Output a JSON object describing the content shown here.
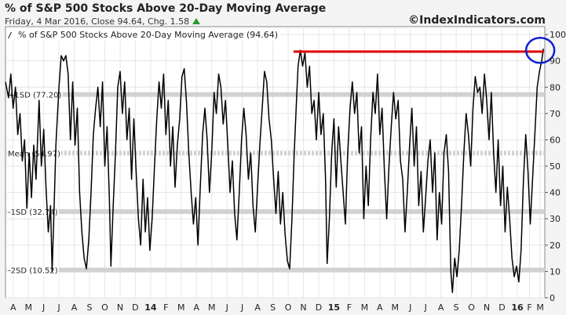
{
  "header": {
    "title": "% of S&P 500 Stocks Above 20-Day Moving Average",
    "subtitle": "Friday, 4 Mar 2016, Close 94.64, Chg. 1.58",
    "credit": "©IndexIndicators.com"
  },
  "legend": {
    "label": "% of S&P 500 Stocks Above 20-Day Moving Average (94.64)"
  },
  "chart_data": {
    "type": "line",
    "title": "% of S&P 500 Stocks Above 20-Day Moving Average",
    "ylim": [
      0,
      103
    ],
    "yticks": [
      0,
      10,
      20,
      30,
      40,
      50,
      60,
      70,
      80,
      90,
      100
    ],
    "xlim": [
      0,
      35.3
    ],
    "xticks": [
      {
        "label": "A",
        "pos": 0.5,
        "bold": false
      },
      {
        "label": "M",
        "pos": 1.5,
        "bold": false
      },
      {
        "label": "J",
        "pos": 2.5,
        "bold": false
      },
      {
        "label": "J",
        "pos": 3.5,
        "bold": false
      },
      {
        "label": "A",
        "pos": 4.5,
        "bold": false
      },
      {
        "label": "S",
        "pos": 5.5,
        "bold": false
      },
      {
        "label": "O",
        "pos": 6.5,
        "bold": false
      },
      {
        "label": "N",
        "pos": 7.5,
        "bold": false
      },
      {
        "label": "D",
        "pos": 8.5,
        "bold": false
      },
      {
        "label": "14",
        "pos": 9.5,
        "bold": true
      },
      {
        "label": "F",
        "pos": 10.5,
        "bold": false
      },
      {
        "label": "M",
        "pos": 11.5,
        "bold": false
      },
      {
        "label": "A",
        "pos": 12.5,
        "bold": false
      },
      {
        "label": "M",
        "pos": 13.5,
        "bold": false
      },
      {
        "label": "J",
        "pos": 14.5,
        "bold": false
      },
      {
        "label": "J",
        "pos": 15.5,
        "bold": false
      },
      {
        "label": "A",
        "pos": 16.5,
        "bold": false
      },
      {
        "label": "S",
        "pos": 17.5,
        "bold": false
      },
      {
        "label": "O",
        "pos": 18.5,
        "bold": false
      },
      {
        "label": "N",
        "pos": 19.5,
        "bold": false
      },
      {
        "label": "D",
        "pos": 20.5,
        "bold": false
      },
      {
        "label": "15",
        "pos": 21.5,
        "bold": true
      },
      {
        "label": "F",
        "pos": 22.5,
        "bold": false
      },
      {
        "label": "M",
        "pos": 23.5,
        "bold": false
      },
      {
        "label": "A",
        "pos": 24.5,
        "bold": false
      },
      {
        "label": "M",
        "pos": 25.5,
        "bold": false
      },
      {
        "label": "J",
        "pos": 26.5,
        "bold": false
      },
      {
        "label": "J",
        "pos": 27.5,
        "bold": false
      },
      {
        "label": "A",
        "pos": 28.5,
        "bold": false
      },
      {
        "label": "S",
        "pos": 29.5,
        "bold": false
      },
      {
        "label": "O",
        "pos": 30.5,
        "bold": false
      },
      {
        "label": "N",
        "pos": 31.5,
        "bold": false
      },
      {
        "label": "D",
        "pos": 32.5,
        "bold": false
      },
      {
        "label": "16",
        "pos": 33.5,
        "bold": true
      },
      {
        "label": "F",
        "pos": 34.3,
        "bold": false
      },
      {
        "label": "M",
        "pos": 35.0,
        "bold": false
      }
    ],
    "bands": [
      {
        "label": "+1SD (77.20)",
        "value": 77.2
      },
      {
        "label": "Mean (54.97)",
        "value": 54.97,
        "dashed": true
      },
      {
        "label": "-1SD (32.74)",
        "value": 32.74
      },
      {
        "label": "-2SD (10.52)",
        "value": 10.52
      }
    ],
    "series": [
      {
        "values": [
          [
            0.0,
            82
          ],
          [
            0.2,
            76
          ],
          [
            0.35,
            85
          ],
          [
            0.5,
            72
          ],
          [
            0.65,
            80
          ],
          [
            0.8,
            62
          ],
          [
            0.95,
            70
          ],
          [
            1.1,
            52
          ],
          [
            1.25,
            60
          ],
          [
            1.4,
            34
          ],
          [
            1.55,
            55
          ],
          [
            1.7,
            38
          ],
          [
            1.85,
            58
          ],
          [
            2.0,
            45
          ],
          [
            2.2,
            75
          ],
          [
            2.35,
            50
          ],
          [
            2.5,
            64
          ],
          [
            2.65,
            42
          ],
          [
            2.8,
            25
          ],
          [
            2.95,
            35
          ],
          [
            3.05,
            10
          ],
          [
            3.15,
            28
          ],
          [
            3.3,
            58
          ],
          [
            3.5,
            80
          ],
          [
            3.65,
            92
          ],
          [
            3.8,
            90
          ],
          [
            3.95,
            92
          ],
          [
            4.1,
            85
          ],
          [
            4.25,
            60
          ],
          [
            4.4,
            82
          ],
          [
            4.55,
            58
          ],
          [
            4.7,
            72
          ],
          [
            4.85,
            40
          ],
          [
            5.0,
            25
          ],
          [
            5.15,
            15
          ],
          [
            5.3,
            11
          ],
          [
            5.45,
            22
          ],
          [
            5.6,
            40
          ],
          [
            5.75,
            62
          ],
          [
            5.9,
            72
          ],
          [
            6.05,
            80
          ],
          [
            6.2,
            65
          ],
          [
            6.35,
            82
          ],
          [
            6.5,
            50
          ],
          [
            6.65,
            65
          ],
          [
            6.8,
            38
          ],
          [
            6.9,
            12
          ],
          [
            7.05,
            35
          ],
          [
            7.2,
            55
          ],
          [
            7.35,
            80
          ],
          [
            7.5,
            86
          ],
          [
            7.65,
            70
          ],
          [
            7.8,
            82
          ],
          [
            7.95,
            60
          ],
          [
            8.1,
            72
          ],
          [
            8.25,
            45
          ],
          [
            8.4,
            68
          ],
          [
            8.55,
            48
          ],
          [
            8.7,
            30
          ],
          [
            8.85,
            20
          ],
          [
            9.0,
            45
          ],
          [
            9.15,
            25
          ],
          [
            9.3,
            38
          ],
          [
            9.45,
            18
          ],
          [
            9.6,
            30
          ],
          [
            9.75,
            50
          ],
          [
            9.9,
            68
          ],
          [
            10.05,
            82
          ],
          [
            10.2,
            72
          ],
          [
            10.35,
            85
          ],
          [
            10.5,
            62
          ],
          [
            10.65,
            75
          ],
          [
            10.8,
            50
          ],
          [
            10.95,
            65
          ],
          [
            11.1,
            42
          ],
          [
            11.25,
            58
          ],
          [
            11.4,
            68
          ],
          [
            11.55,
            84
          ],
          [
            11.7,
            87
          ],
          [
            11.85,
            74
          ],
          [
            12.0,
            55
          ],
          [
            12.15,
            40
          ],
          [
            12.3,
            28
          ],
          [
            12.45,
            38
          ],
          [
            12.6,
            20
          ],
          [
            12.75,
            42
          ],
          [
            12.9,
            62
          ],
          [
            13.05,
            72
          ],
          [
            13.2,
            60
          ],
          [
            13.35,
            40
          ],
          [
            13.5,
            55
          ],
          [
            13.65,
            78
          ],
          [
            13.8,
            70
          ],
          [
            13.95,
            85
          ],
          [
            14.1,
            80
          ],
          [
            14.25,
            66
          ],
          [
            14.4,
            75
          ],
          [
            14.55,
            58
          ],
          [
            14.7,
            40
          ],
          [
            14.85,
            52
          ],
          [
            15.0,
            32
          ],
          [
            15.15,
            22
          ],
          [
            15.3,
            40
          ],
          [
            15.45,
            60
          ],
          [
            15.6,
            72
          ],
          [
            15.75,
            62
          ],
          [
            15.9,
            45
          ],
          [
            16.05,
            55
          ],
          [
            16.2,
            35
          ],
          [
            16.35,
            25
          ],
          [
            16.5,
            42
          ],
          [
            16.65,
            58
          ],
          [
            16.8,
            72
          ],
          [
            16.95,
            86
          ],
          [
            17.1,
            82
          ],
          [
            17.25,
            68
          ],
          [
            17.4,
            60
          ],
          [
            17.55,
            45
          ],
          [
            17.7,
            32
          ],
          [
            17.85,
            48
          ],
          [
            18.0,
            28
          ],
          [
            18.15,
            40
          ],
          [
            18.3,
            24
          ],
          [
            18.45,
            14
          ],
          [
            18.6,
            11
          ],
          [
            18.75,
            30
          ],
          [
            18.9,
            55
          ],
          [
            19.05,
            75
          ],
          [
            19.15,
            88
          ],
          [
            19.3,
            94
          ],
          [
            19.45,
            88
          ],
          [
            19.6,
            93
          ],
          [
            19.75,
            80
          ],
          [
            19.9,
            88
          ],
          [
            20.05,
            70
          ],
          [
            20.2,
            75
          ],
          [
            20.35,
            60
          ],
          [
            20.5,
            78
          ],
          [
            20.65,
            62
          ],
          [
            20.8,
            70
          ],
          [
            20.95,
            45
          ],
          [
            21.05,
            13
          ],
          [
            21.2,
            30
          ],
          [
            21.35,
            55
          ],
          [
            21.5,
            68
          ],
          [
            21.65,
            42
          ],
          [
            21.8,
            65
          ],
          [
            21.95,
            52
          ],
          [
            22.1,
            40
          ],
          [
            22.25,
            28
          ],
          [
            22.4,
            55
          ],
          [
            22.55,
            72
          ],
          [
            22.7,
            82
          ],
          [
            22.85,
            70
          ],
          [
            23.0,
            78
          ],
          [
            23.15,
            55
          ],
          [
            23.3,
            65
          ],
          [
            23.45,
            30
          ],
          [
            23.6,
            50
          ],
          [
            23.75,
            35
          ],
          [
            23.9,
            60
          ],
          [
            24.05,
            78
          ],
          [
            24.2,
            70
          ],
          [
            24.35,
            85
          ],
          [
            24.5,
            62
          ],
          [
            24.65,
            72
          ],
          [
            24.8,
            48
          ],
          [
            24.95,
            30
          ],
          [
            25.1,
            50
          ],
          [
            25.25,
            65
          ],
          [
            25.4,
            78
          ],
          [
            25.55,
            68
          ],
          [
            25.7,
            75
          ],
          [
            25.85,
            52
          ],
          [
            26.0,
            45
          ],
          [
            26.15,
            25
          ],
          [
            26.3,
            40
          ],
          [
            26.45,
            58
          ],
          [
            26.6,
            72
          ],
          [
            26.75,
            50
          ],
          [
            26.9,
            65
          ],
          [
            27.05,
            35
          ],
          [
            27.2,
            48
          ],
          [
            27.35,
            25
          ],
          [
            27.5,
            38
          ],
          [
            27.65,
            52
          ],
          [
            27.8,
            60
          ],
          [
            27.95,
            40
          ],
          [
            28.1,
            55
          ],
          [
            28.25,
            22
          ],
          [
            28.4,
            40
          ],
          [
            28.55,
            28
          ],
          [
            28.7,
            55
          ],
          [
            28.85,
            62
          ],
          [
            29.0,
            48
          ],
          [
            29.15,
            10
          ],
          [
            29.25,
            2
          ],
          [
            29.4,
            15
          ],
          [
            29.55,
            8
          ],
          [
            29.7,
            18
          ],
          [
            29.85,
            35
          ],
          [
            30.0,
            55
          ],
          [
            30.15,
            70
          ],
          [
            30.3,
            62
          ],
          [
            30.45,
            50
          ],
          [
            30.6,
            72
          ],
          [
            30.75,
            84
          ],
          [
            30.9,
            78
          ],
          [
            31.05,
            80
          ],
          [
            31.2,
            70
          ],
          [
            31.35,
            85
          ],
          [
            31.5,
            75
          ],
          [
            31.65,
            60
          ],
          [
            31.8,
            78
          ],
          [
            31.95,
            55
          ],
          [
            32.1,
            40
          ],
          [
            32.25,
            60
          ],
          [
            32.4,
            35
          ],
          [
            32.55,
            50
          ],
          [
            32.7,
            25
          ],
          [
            32.85,
            42
          ],
          [
            33.0,
            30
          ],
          [
            33.15,
            15
          ],
          [
            33.3,
            8
          ],
          [
            33.45,
            12
          ],
          [
            33.6,
            6
          ],
          [
            33.75,
            18
          ],
          [
            33.9,
            45
          ],
          [
            34.05,
            62
          ],
          [
            34.2,
            48
          ],
          [
            34.35,
            28
          ],
          [
            34.5,
            45
          ],
          [
            34.65,
            62
          ],
          [
            34.8,
            80
          ],
          [
            34.95,
            86
          ],
          [
            35.1,
            90
          ],
          [
            35.2,
            94.64
          ]
        ]
      }
    ],
    "annotations": {
      "horizontal_line": {
        "value": 93.5,
        "x_start": 18.85,
        "x_end": 35.25,
        "color": "#e00000"
      },
      "circle": {
        "x": 35.0,
        "value": 94,
        "color": "#1020d0"
      }
    },
    "line_color": "#000000",
    "band_color": "#d2d2d2",
    "grid": true
  }
}
